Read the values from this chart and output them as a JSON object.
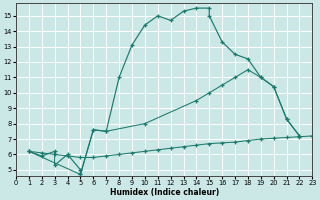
{
  "xlabel": "Humidex (Indice chaleur)",
  "bg_color": "#cce8e6",
  "line_color": "#1a7a6e",
  "xlim": [
    0,
    23
  ],
  "ylim": [
    4.6,
    15.8
  ],
  "yticks": [
    5,
    6,
    7,
    8,
    9,
    10,
    11,
    12,
    13,
    14,
    15
  ],
  "xticks": [
    0,
    1,
    2,
    3,
    4,
    5,
    6,
    7,
    8,
    9,
    10,
    11,
    12,
    13,
    14,
    15,
    16,
    17,
    18,
    19,
    20,
    21,
    22,
    23
  ],
  "curve1_x": [
    1,
    2,
    3,
    3,
    4,
    5,
    5,
    6,
    7,
    8,
    9,
    10,
    11,
    12,
    13,
    14,
    15,
    15,
    16,
    17,
    18,
    19,
    20,
    21,
    22
  ],
  "curve1_y": [
    6.2,
    5.9,
    6.2,
    5.3,
    6.0,
    5.0,
    4.7,
    7.6,
    7.5,
    11.0,
    13.1,
    14.4,
    15.0,
    14.7,
    15.3,
    15.5,
    15.5,
    15.0,
    13.3,
    12.5,
    12.2,
    11.0,
    10.4,
    8.3,
    7.2
  ],
  "curve2_x": [
    1,
    2,
    3,
    4,
    5,
    6,
    7,
    8,
    9,
    10,
    11,
    12,
    13,
    14,
    15,
    16,
    17,
    18,
    19,
    20,
    21,
    22,
    23
  ],
  "curve2_y": [
    6.2,
    6.1,
    6.0,
    5.9,
    5.8,
    5.8,
    5.9,
    6.0,
    6.1,
    6.2,
    6.3,
    6.4,
    6.5,
    6.6,
    6.7,
    6.75,
    6.8,
    6.9,
    7.0,
    7.05,
    7.1,
    7.15,
    7.2
  ],
  "curve3_x": [
    1,
    5,
    6,
    7,
    10,
    14,
    15,
    16,
    17,
    18,
    19,
    20,
    21,
    22
  ],
  "curve3_y": [
    6.2,
    4.7,
    7.6,
    7.5,
    8.0,
    9.5,
    10.0,
    10.5,
    11.0,
    11.5,
    11.0,
    10.4,
    8.3,
    7.2
  ]
}
